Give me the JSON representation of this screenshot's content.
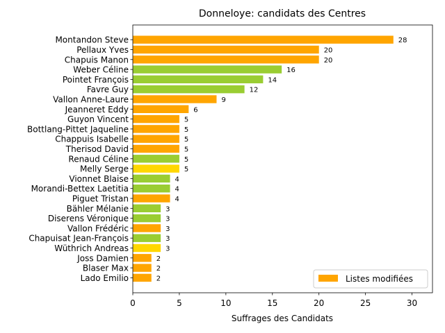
{
  "chart_data": {
    "type": "bar",
    "orientation": "horizontal",
    "title": "Donneloye: candidats des Centres",
    "xlabel": "Suffrages des Candidats",
    "ylabel": "",
    "xlim": [
      0,
      32.2
    ],
    "xticks": [
      0,
      5,
      10,
      15,
      20,
      25,
      30
    ],
    "grid": false,
    "legend": {
      "label": "Listes modifiées",
      "color": "#FFA500",
      "position": "lower-right"
    },
    "categories": [
      "Montandon Steve",
      "Pellaux Yves",
      "Chapuis Manon",
      "Weber Céline",
      "Pointet François",
      "Favre Guy",
      "Vallon Anne-Laure",
      "Jeanneret Eddy",
      "Guyon Vincent",
      "Bottlang-Pittet Jaqueline",
      "Chappuis Isabelle",
      "Therisod David",
      "Renaud Céline",
      "Melly Serge",
      "Vionnet Blaise",
      "Morandi-Bettex Laetitia",
      "Piguet Tristan",
      "Bähler Mélanie",
      "Diserens Véronique",
      "Vallon Frédéric",
      "Chapuisat Jean-François",
      "Wüthrich Andreas",
      "Joss Damien",
      "Blaser Max",
      "Lado Emilio"
    ],
    "values": [
      28,
      20,
      20,
      16,
      14,
      12,
      9,
      6,
      5,
      5,
      5,
      5,
      5,
      5,
      4,
      4,
      4,
      3,
      3,
      3,
      3,
      3,
      2,
      2,
      2
    ],
    "colors": [
      "#FFA500",
      "#FFA500",
      "#FFA500",
      "#9ACD32",
      "#9ACD32",
      "#9ACD32",
      "#FFA500",
      "#FFA500",
      "#FFA500",
      "#FFA500",
      "#FFA500",
      "#FFA500",
      "#9ACD32",
      "#FFD700",
      "#9ACD32",
      "#9ACD32",
      "#FFA500",
      "#9ACD32",
      "#9ACD32",
      "#FFA500",
      "#9ACD32",
      "#FFD700",
      "#FFA500",
      "#FFA500",
      "#FFA500"
    ]
  }
}
